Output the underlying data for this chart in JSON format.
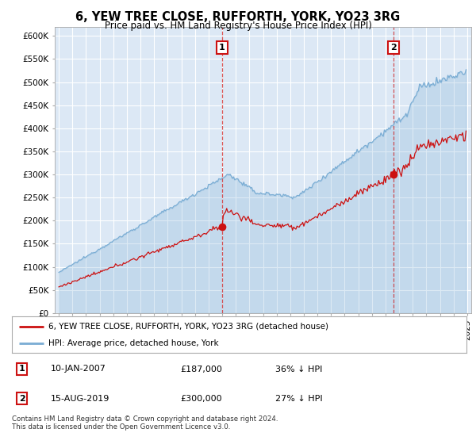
{
  "title": "6, YEW TREE CLOSE, RUFFORTH, YORK, YO23 3RG",
  "subtitle": "Price paid vs. HM Land Registry's House Price Index (HPI)",
  "background_color": "#dce8f5",
  "outer_bg_color": "#ffffff",
  "hpi_color": "#7aadd4",
  "price_color": "#cc1111",
  "legend_line1": "6, YEW TREE CLOSE, RUFFORTH, YORK, YO23 3RG (detached house)",
  "legend_line2": "HPI: Average price, detached house, York",
  "table_row1": [
    "1",
    "10-JAN-2007",
    "£187,000",
    "36% ↓ HPI"
  ],
  "table_row2": [
    "2",
    "15-AUG-2019",
    "£300,000",
    "27% ↓ HPI"
  ],
  "footer": "Contains HM Land Registry data © Crown copyright and database right 2024.\nThis data is licensed under the Open Government Licence v3.0.",
  "ylim": [
    0,
    620000
  ],
  "yticks": [
    0,
    50000,
    100000,
    150000,
    200000,
    250000,
    300000,
    350000,
    400000,
    450000,
    500000,
    550000,
    600000
  ],
  "start_year": 1995,
  "end_year": 2025,
  "idx1": 144,
  "idx2": 295,
  "sale1_price": 187000,
  "sale2_price": 300000
}
